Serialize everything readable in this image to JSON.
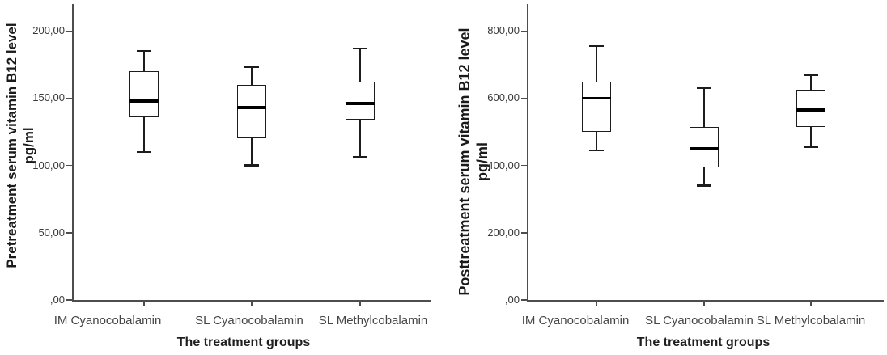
{
  "figure": {
    "background": "#ffffff",
    "line_color": "#1c1c1c",
    "axis_color": "#4d4d4d"
  },
  "chart_data": [
    {
      "type": "box",
      "title": "",
      "ylabel_line1": "Pretreatment serum vitamin B12 level",
      "ylabel_line2": "pg/ml",
      "xlabel": "The treatment groups",
      "categories": [
        "IM Cyanocobalamin",
        "SL Cyanocobalamin",
        "SL Methylcobalamin"
      ],
      "yticks": [
        0,
        50,
        100,
        150,
        200
      ],
      "yticklabels": [
        ",00",
        "50,00",
        "100,00",
        "150,00",
        "200,00"
      ],
      "ylim": [
        0,
        220
      ],
      "grid": false,
      "legend": "none",
      "series": [
        {
          "name": "IM Cyanocobalamin",
          "whisker_low": 110,
          "q1": 136,
          "median": 148,
          "q3": 170,
          "whisker_high": 185
        },
        {
          "name": "SL Cyanocobalamin",
          "whisker_low": 100,
          "q1": 120,
          "median": 143,
          "q3": 160,
          "whisker_high": 173
        },
        {
          "name": "SL Methylcobalamin",
          "whisker_low": 106,
          "q1": 134,
          "median": 146,
          "q3": 162,
          "whisker_high": 187
        }
      ]
    },
    {
      "type": "box",
      "title": "",
      "ylabel_line1": "Posttreatment serum vitamin B12 level",
      "ylabel_line2": "pg/ml",
      "xlabel": "The treatment groups",
      "categories": [
        "IM Cyanocobalamin",
        "SL Cyanocobalamin",
        "SL Methylcobalamin"
      ],
      "yticks": [
        0,
        200,
        400,
        600,
        800
      ],
      "yticklabels": [
        ",00",
        "200,00",
        "400,00",
        "600,00",
        "800,00"
      ],
      "ylim": [
        0,
        880
      ],
      "grid": false,
      "legend": "none",
      "series": [
        {
          "name": "IM Cyanocobalamin",
          "whisker_low": 445,
          "q1": 500,
          "median": 600,
          "q3": 650,
          "whisker_high": 755
        },
        {
          "name": "SL Cyanocobalamin",
          "whisker_low": 340,
          "q1": 395,
          "median": 450,
          "q3": 515,
          "whisker_high": 630
        },
        {
          "name": "SL Methylcobalamin",
          "whisker_low": 455,
          "q1": 515,
          "median": 565,
          "q3": 625,
          "whisker_high": 670
        }
      ]
    }
  ]
}
